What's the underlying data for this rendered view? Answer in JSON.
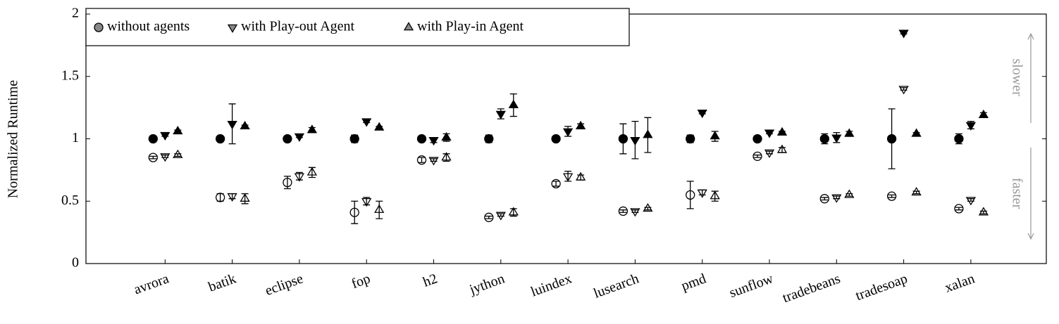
{
  "chart_data": {
    "type": "errorbar-scatter",
    "ylabel": "Normalized Runtime",
    "categories": [
      "avrora",
      "batik",
      "eclipse",
      "fop",
      "h2",
      "jython",
      "luindex",
      "lusearch",
      "pmd",
      "sunflow",
      "tradebeans",
      "tradesoap",
      "xalan"
    ],
    "ylim": [
      0,
      2
    ],
    "yticks": [
      0,
      0.5,
      1,
      1.5,
      2
    ],
    "legend": "top-left",
    "annotations": [
      "slower",
      "faster"
    ],
    "series": [
      {
        "name": "without agents",
        "marker": "circle",
        "color": "#000000",
        "filled_values": [
          1.0,
          1.0,
          1.0,
          1.0,
          1.0,
          1.0,
          1.0,
          1.0,
          1.0,
          1.0,
          1.0,
          1.0,
          1.0
        ],
        "filled_errors": [
          0.01,
          0.01,
          0.02,
          0.03,
          0.01,
          0.03,
          0.01,
          0.12,
          0.03,
          0.01,
          0.04,
          0.24,
          0.04
        ],
        "open_values": [
          0.85,
          0.53,
          0.65,
          0.41,
          0.83,
          0.37,
          0.64,
          0.42,
          0.55,
          0.86,
          0.52,
          0.54,
          0.44
        ],
        "open_errors": [
          0.01,
          0.03,
          0.05,
          0.09,
          0.02,
          0.01,
          0.02,
          0.01,
          0.11,
          0.01,
          0.01,
          0.01,
          0.01
        ]
      },
      {
        "name": "with Play-out Agent",
        "marker": "triangle-down",
        "color": "#000000",
        "filled_values": [
          1.03,
          1.12,
          1.02,
          1.14,
          0.99,
          1.2,
          1.06,
          0.99,
          1.21,
          1.05,
          1.01,
          1.85,
          1.11
        ],
        "filled_errors": [
          0.01,
          0.16,
          0.01,
          0.01,
          0.02,
          0.04,
          0.04,
          0.15,
          0.01,
          0.01,
          0.04,
          0.01,
          0.03
        ],
        "open_values": [
          0.86,
          0.54,
          0.7,
          0.5,
          0.83,
          0.39,
          0.7,
          0.42,
          0.57,
          0.89,
          0.53,
          1.4,
          0.51
        ],
        "open_errors": [
          0.01,
          0.02,
          0.03,
          0.03,
          0.01,
          0.01,
          0.04,
          0.01,
          0.02,
          0.01,
          0.01,
          0.01,
          0.01
        ]
      },
      {
        "name": "with Play-in Agent",
        "marker": "triangle-up",
        "color": "#000000",
        "filled_values": [
          1.06,
          1.1,
          1.07,
          1.09,
          1.01,
          1.27,
          1.1,
          1.03,
          1.02,
          1.05,
          1.04,
          1.04,
          1.19
        ],
        "filled_errors": [
          0.01,
          0.01,
          0.02,
          0.01,
          0.03,
          0.09,
          0.02,
          0.14,
          0.04,
          0.01,
          0.02,
          0.01,
          0.02
        ],
        "open_values": [
          0.87,
          0.52,
          0.73,
          0.43,
          0.85,
          0.41,
          0.69,
          0.44,
          0.54,
          0.91,
          0.55,
          0.57,
          0.41
        ],
        "open_errors": [
          0.01,
          0.04,
          0.04,
          0.07,
          0.03,
          0.03,
          0.02,
          0.01,
          0.04,
          0.02,
          0.01,
          0.01,
          0.01
        ]
      }
    ]
  }
}
